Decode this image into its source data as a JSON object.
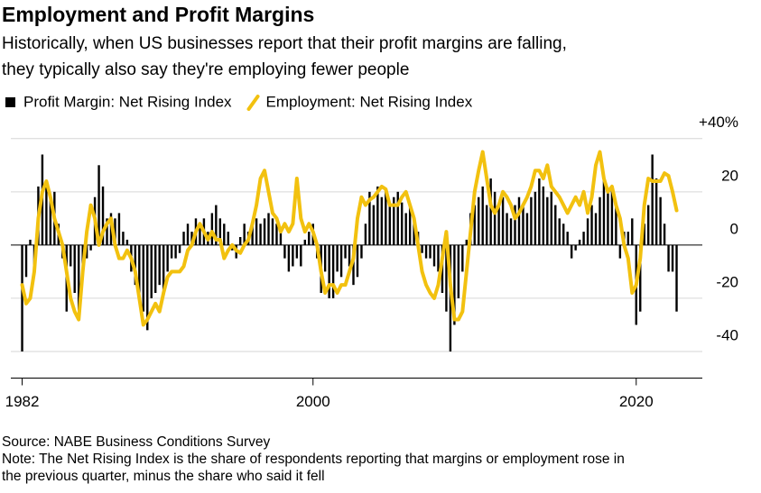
{
  "chart_data": {
    "type": "combo",
    "title": "Employment and Profit Margins",
    "subtitle": [
      "Historically, when US businesses report that their profit margins are falling,",
      "they typically also say they're employing fewer people"
    ],
    "source": "Source: NABE Business Conditions Survey",
    "note": [
      "Note: The Net Rising Index is the share of respondents reporting that margins or employment rose in",
      "the previous quarter, minus the share who said it fell"
    ],
    "xlim": [
      1981.3,
      2023.7
    ],
    "xticks": [
      1982,
      2000,
      2020
    ],
    "ylim": [
      -50,
      45
    ],
    "yticks": [
      {
        "value": 40,
        "label": "+40%"
      },
      20,
      0,
      -20,
      -40
    ],
    "grid": true,
    "x": [
      1982,
      1982.25,
      1982.5,
      1982.75,
      1983,
      1983.25,
      1983.5,
      1983.75,
      1984,
      1984.25,
      1984.5,
      1984.75,
      1985,
      1985.25,
      1985.5,
      1985.75,
      1986,
      1986.25,
      1986.5,
      1986.75,
      1987,
      1987.25,
      1987.5,
      1987.75,
      1988,
      1988.25,
      1988.5,
      1988.75,
      1989,
      1989.25,
      1989.5,
      1989.75,
      1990,
      1990.25,
      1990.5,
      1990.75,
      1991,
      1991.25,
      1991.5,
      1991.75,
      1992,
      1992.25,
      1992.5,
      1992.75,
      1993,
      1993.25,
      1993.5,
      1993.75,
      1994,
      1994.25,
      1994.5,
      1994.75,
      1995,
      1995.25,
      1995.5,
      1995.75,
      1996,
      1996.25,
      1996.5,
      1996.75,
      1997,
      1997.25,
      1997.5,
      1997.75,
      1998,
      1998.25,
      1998.5,
      1998.75,
      1999,
      1999.25,
      1999.5,
      1999.75,
      2000,
      2000.25,
      2000.5,
      2000.75,
      2001,
      2001.25,
      2001.5,
      2001.75,
      2002,
      2002.25,
      2002.5,
      2002.75,
      2003,
      2003.25,
      2003.5,
      2003.75,
      2004,
      2004.25,
      2004.5,
      2004.75,
      2005,
      2005.25,
      2005.5,
      2005.75,
      2006,
      2006.25,
      2006.5,
      2006.75,
      2007,
      2007.25,
      2007.5,
      2007.75,
      2008,
      2008.25,
      2008.5,
      2008.75,
      2009,
      2009.25,
      2009.5,
      2009.75,
      2010,
      2010.25,
      2010.5,
      2010.75,
      2011,
      2011.25,
      2011.5,
      2011.75,
      2012,
      2012.25,
      2012.5,
      2012.75,
      2013,
      2013.25,
      2013.5,
      2013.75,
      2014,
      2014.25,
      2014.5,
      2014.75,
      2015,
      2015.25,
      2015.5,
      2015.75,
      2016,
      2016.25,
      2016.5,
      2016.75,
      2017,
      2017.25,
      2017.5,
      2017.75,
      2018,
      2018.25,
      2018.5,
      2018.75,
      2019,
      2019.25,
      2019.5,
      2019.75,
      2020,
      2020.25,
      2020.5,
      2020.75,
      2021,
      2021.25,
      2021.5,
      2021.75,
      2022,
      2022.25,
      2022.5
    ],
    "series": [
      {
        "name": "Profit Margin: Net Rising Index",
        "type": "bar",
        "color": "#000000",
        "values": [
          -40,
          -12,
          2,
          -8,
          22,
          34,
          24,
          18,
          20,
          8,
          -5,
          -25,
          -8,
          -18,
          -25,
          -12,
          -5,
          -2,
          18,
          30,
          22,
          10,
          12,
          10,
          12,
          5,
          2,
          -10,
          -15,
          -20,
          -25,
          -32,
          -20,
          -18,
          -15,
          -18,
          -10,
          -5,
          -5,
          -3,
          5,
          8,
          5,
          10,
          8,
          10,
          5,
          12,
          15,
          10,
          8,
          5,
          -2,
          -5,
          3,
          8,
          5,
          8,
          10,
          8,
          10,
          12,
          10,
          8,
          5,
          -5,
          -10,
          -8,
          -5,
          -8,
          2,
          5,
          8,
          -5,
          -18,
          -10,
          -20,
          -20,
          -10,
          -12,
          -5,
          -8,
          -15,
          -12,
          -5,
          8,
          20,
          15,
          22,
          18,
          20,
          15,
          18,
          20,
          16,
          12,
          15,
          10,
          5,
          -3,
          -5,
          -5,
          -8,
          -10,
          -18,
          -25,
          -40,
          -30,
          -20,
          -10,
          2,
          12,
          15,
          18,
          22,
          15,
          25,
          20,
          15,
          18,
          12,
          10,
          15,
          18,
          15,
          12,
          18,
          20,
          25,
          22,
          18,
          20,
          15,
          10,
          8,
          5,
          -5,
          -2,
          2,
          5,
          10,
          15,
          12,
          18,
          25,
          20,
          22,
          15,
          -5,
          5,
          5,
          10,
          -30,
          -25,
          8,
          15,
          34,
          25,
          18,
          8,
          -10,
          -10,
          -25
        ]
      },
      {
        "name": "Employment: Net Rising Index",
        "type": "line",
        "color": "#f2c10f",
        "values": [
          -15,
          -22,
          -20,
          -10,
          10,
          20,
          24,
          18,
          10,
          5,
          0,
          -10,
          -20,
          -25,
          -28,
          -10,
          5,
          15,
          10,
          0,
          5,
          8,
          10,
          0,
          -5,
          -5,
          -2,
          -5,
          -10,
          -20,
          -30,
          -28,
          -25,
          -22,
          -25,
          -18,
          -12,
          -10,
          -10,
          -10,
          -8,
          -2,
          0,
          5,
          8,
          5,
          2,
          5,
          2,
          2,
          -5,
          -2,
          0,
          -2,
          -3,
          0,
          2,
          8,
          15,
          25,
          28,
          20,
          12,
          10,
          5,
          8,
          5,
          8,
          25,
          10,
          5,
          8,
          5,
          0,
          -10,
          -18,
          -15,
          -15,
          -18,
          -15,
          -15,
          -10,
          -5,
          10,
          18,
          15,
          17,
          18,
          20,
          22,
          21,
          15,
          15,
          15,
          18,
          20,
          15,
          10,
          0,
          -10,
          -15,
          -18,
          -20,
          -15,
          -5,
          5,
          -15,
          -28,
          -28,
          -25,
          -10,
          5,
          20,
          28,
          35,
          25,
          15,
          12,
          15,
          20,
          18,
          15,
          10,
          12,
          15,
          18,
          22,
          28,
          28,
          25,
          30,
          22,
          20,
          18,
          15,
          12,
          15,
          18,
          15,
          20,
          12,
          18,
          30,
          35,
          25,
          20,
          22,
          15,
          10,
          0,
          -5,
          -18,
          -15,
          -5,
          15,
          25,
          24,
          24,
          24,
          27,
          26,
          20,
          13
        ]
      }
    ]
  }
}
